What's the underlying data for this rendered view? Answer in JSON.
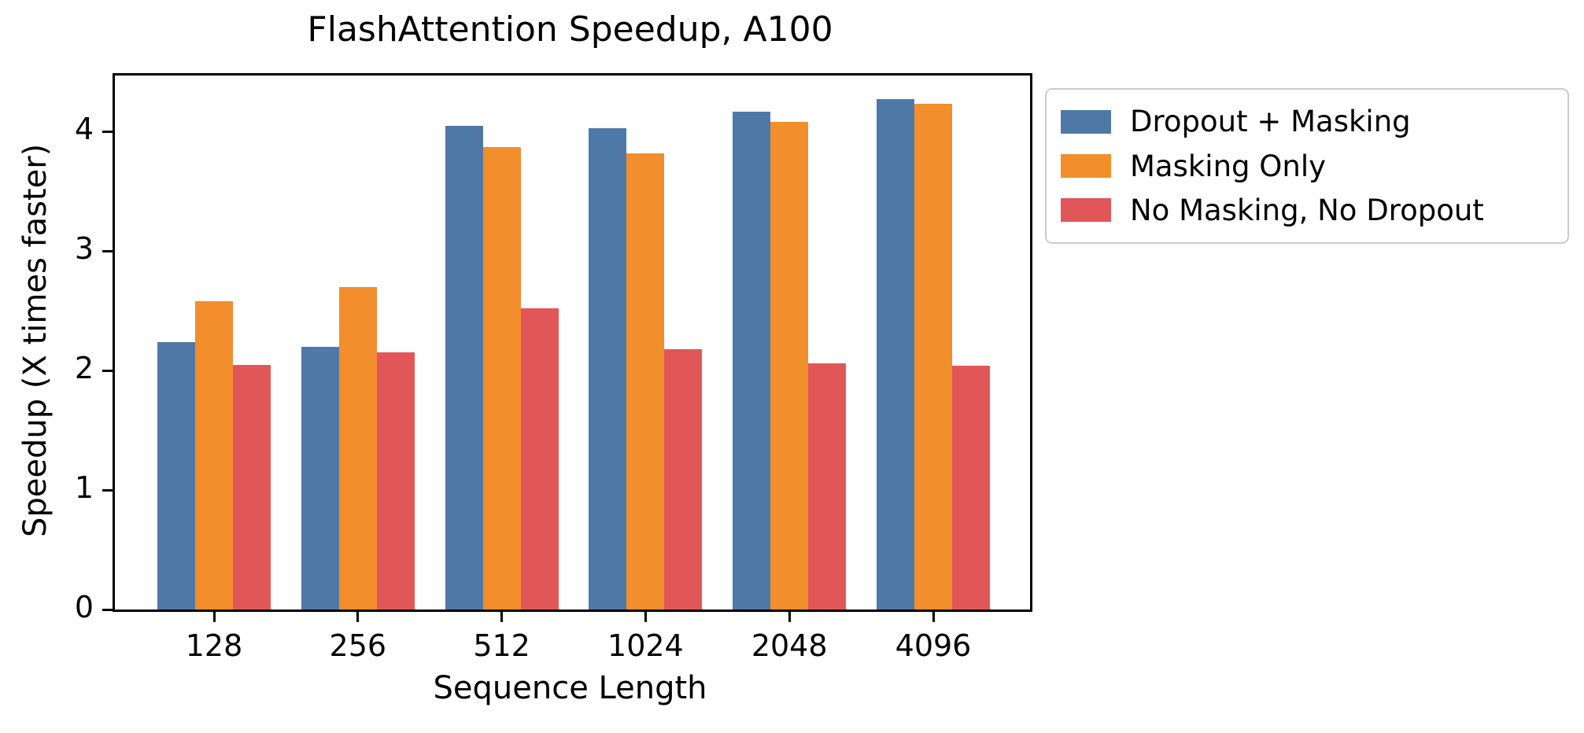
{
  "chart_data": {
    "type": "bar",
    "title": "FlashAttention Speedup, A100",
    "xlabel": "Sequence Length",
    "ylabel": "Speedup (X times faster)",
    "categories": [
      "128",
      "256",
      "512",
      "1024",
      "2048",
      "4096"
    ],
    "series": [
      {
        "name": "Dropout + Masking",
        "color": "#4E79A7",
        "values": [
          2.24,
          2.2,
          4.05,
          4.03,
          4.17,
          4.27
        ]
      },
      {
        "name": "Masking Only",
        "color": "#F28E2B",
        "values": [
          2.58,
          2.7,
          3.87,
          3.82,
          4.08,
          4.23
        ]
      },
      {
        "name": "No Masking, No Dropout",
        "color": "#E15759",
        "values": [
          2.05,
          2.15,
          2.52,
          2.18,
          2.06,
          2.04
        ]
      }
    ],
    "yticks": [
      0,
      1,
      2,
      3,
      4
    ],
    "ylim": [
      0,
      4.47
    ],
    "grid": false,
    "legend_position": "upper right, outside axes",
    "axis_color": "#000000"
  }
}
